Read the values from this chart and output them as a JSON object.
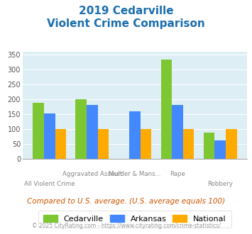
{
  "title_line1": "2019 Cedarville",
  "title_line2": "Violent Crime Comparison",
  "categories": [
    "All Violent Crime",
    "Aggravated Assault",
    "Murder & Mans...",
    "Rape",
    "Robbery"
  ],
  "cedarville": [
    188,
    200,
    0,
    333,
    88
  ],
  "arkansas": [
    152,
    180,
    160,
    180,
    63
  ],
  "national": [
    100,
    100,
    100,
    100,
    100
  ],
  "color_cedarville": "#7dc832",
  "color_arkansas": "#4488ff",
  "color_national": "#ffaa00",
  "ylim": [
    0,
    360
  ],
  "yticks": [
    0,
    50,
    100,
    150,
    200,
    250,
    300,
    350
  ],
  "bg_color": "#ddeef5",
  "legend_labels": [
    "Cedarville",
    "Arkansas",
    "National"
  ],
  "footnote1": "Compared to U.S. average. (U.S. average equals 100)",
  "footnote2": "© 2025 CityRating.com - https://www.cityrating.com/crime-statistics/",
  "title_color": "#1a6faf",
  "footnote1_color": "#cc5500",
  "footnote2_color": "#999999"
}
